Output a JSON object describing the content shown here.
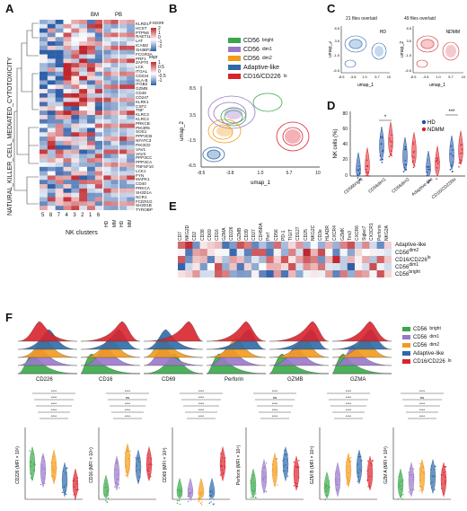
{
  "panels": {
    "A": "A",
    "B": "B",
    "C": "C",
    "D": "D",
    "E": "E",
    "F": "F"
  },
  "colors": {
    "bright": "#3aa84a",
    "dim1": "#9a78c8",
    "dim2": "#f39a1a",
    "adaptive": "#2e6aa8",
    "cd16": "#d9232d",
    "hd": "#1e4fa0",
    "ndmm": "#d9232d",
    "heat_high": "#c0262c",
    "heat_low": "#2f5fa8"
  },
  "panelA": {
    "pathway_label": "NATURAL_KILLER_CELL_MEDIATED_CYTOTOXICITY",
    "column_headers": [
      "BM",
      "PB"
    ],
    "cluster_labels": [
      "5",
      "8",
      "7",
      "4",
      "3",
      "2",
      "1",
      "6"
    ],
    "group_labels": [
      "HD",
      "MM",
      "HD",
      "MM"
    ],
    "xlabel": "NK clusters",
    "zscore_title": "z-score",
    "zscore_ticks": [
      "2",
      "1",
      "0",
      "-1",
      "-2"
    ],
    "expr_title": "expr",
    "expr_ticks": [
      "1",
      "0.5",
      "0",
      "-0.5",
      "-1"
    ],
    "genes": [
      "KLRD1",
      "HCST",
      "PTPN6",
      "RAET1L",
      "LAT",
      "ICAM2",
      "SH3BP2",
      "FCGR3A",
      "PRF1",
      "ZAP70",
      "LCK",
      "ITGAL",
      "CD244",
      "HLA-B",
      "ITGB2",
      "GZMB",
      "CD48",
      "CD247",
      "KLRK1",
      "CSF2",
      "TNF",
      "KLRC3",
      "KLRC2",
      "PRKCB",
      "PIK3R5",
      "SOS1",
      "PPP3CB",
      "NFATC3",
      "PIK3CD",
      "VAV1",
      "VAV3",
      "PPP3CC",
      "PPP3CA",
      "TNFSF10",
      "LCK1",
      "FYN",
      "MAPK1",
      "CD40",
      "PRKCA",
      "SH2D1A",
      "NCR1",
      "FCER1G",
      "SH2D1B",
      "TYROBP"
    ]
  },
  "panelB": {
    "legend": [
      "CD56bright",
      "CD56dim1",
      "CD56dim2",
      "Adaptive-like",
      "CD16/CD226lo"
    ],
    "legend_main": [
      "CD56",
      "CD56",
      "CD56",
      "Adaptive-like",
      "CD16/CD226"
    ],
    "legend_sup": [
      "bright",
      "dim1",
      "dim2",
      "",
      "lo"
    ],
    "xlabel": "umap_1",
    "ylabel": "umap_2",
    "xticks": [
      "-8.5",
      "-3.8",
      "1.0",
      "5.7",
      "10"
    ],
    "yticks": [
      "8.5",
      "3.5",
      "-1.5",
      "-6.5"
    ]
  },
  "panelC": {
    "left_title": "21 files overlaid",
    "left_tag": "HD",
    "right_title": "49 files overlaid",
    "right_tag": "NDMM",
    "xlabel": "umap_1",
    "ylabel": "umap_2",
    "xticks": [
      "-8.5",
      "-3.8",
      "1.0",
      "5.7",
      "10"
    ],
    "yticks": [
      "8.5",
      "3.5",
      "-1.5",
      "-6.5"
    ]
  },
  "panelD": {
    "ylabel": "NK cells (%)",
    "yticks": [
      "80",
      "60",
      "40",
      "20",
      "0"
    ],
    "categories": [
      "CD56bright",
      "CD56dim1",
      "CD56dim2",
      "Adaptive-like",
      "CD16/CD226lo"
    ],
    "legend": [
      "HD",
      "NDMM"
    ],
    "sig": [
      "*",
      "***"
    ]
  },
  "panelE": {
    "markers": [
      "CD7",
      "NKG2D",
      "CD2",
      "CD38",
      "CD69",
      "CD16",
      "GZMA",
      "CD226",
      "GZMB",
      "CD39",
      "CD27",
      "CD45RA",
      "Perf",
      "CD56",
      "PD-1",
      "TIGIT",
      "CD127",
      "CD25",
      "NKG2C",
      "CD3e",
      "HLADR",
      "CXCR4",
      "GZMK",
      "Tim3",
      "CXCR6",
      "Siglec7",
      "CX3CR1",
      "Perforin",
      "NKG2A"
    ],
    "rows": [
      "Adaptive-like",
      "CD56dim2",
      "CD16/CD226lo",
      "CD56dim1",
      "CD56bright"
    ],
    "rows_main": [
      "Adaptive-like",
      "CD56",
      "CD16/CD226",
      "CD56",
      "CD56"
    ],
    "rows_sup": [
      "",
      "dim2",
      "lo",
      "dim1",
      "bright"
    ]
  },
  "panelF": {
    "markers": [
      "CD226",
      "CD16",
      "CD69",
      "Perforin",
      "GZMB",
      "GZMA"
    ],
    "ylabels": [
      "CD226 (MFI × 10³)",
      "CD16 (MFI × 10⁴)",
      "CD69 (MFI × 10³)",
      "Perforin (MFI × 10⁴)",
      "GZM B (MFI × 10⁴)",
      "GZM A (MFI × 10³)"
    ],
    "legend_main": [
      "CD56",
      "CD56",
      "CD56",
      "Adaptive-like",
      "CD16/CD226"
    ],
    "legend_sup": [
      "bright",
      "dim1",
      "dim2",
      "",
      "lo"
    ],
    "sig_top": "****",
    "sig_ns": "ns"
  }
}
